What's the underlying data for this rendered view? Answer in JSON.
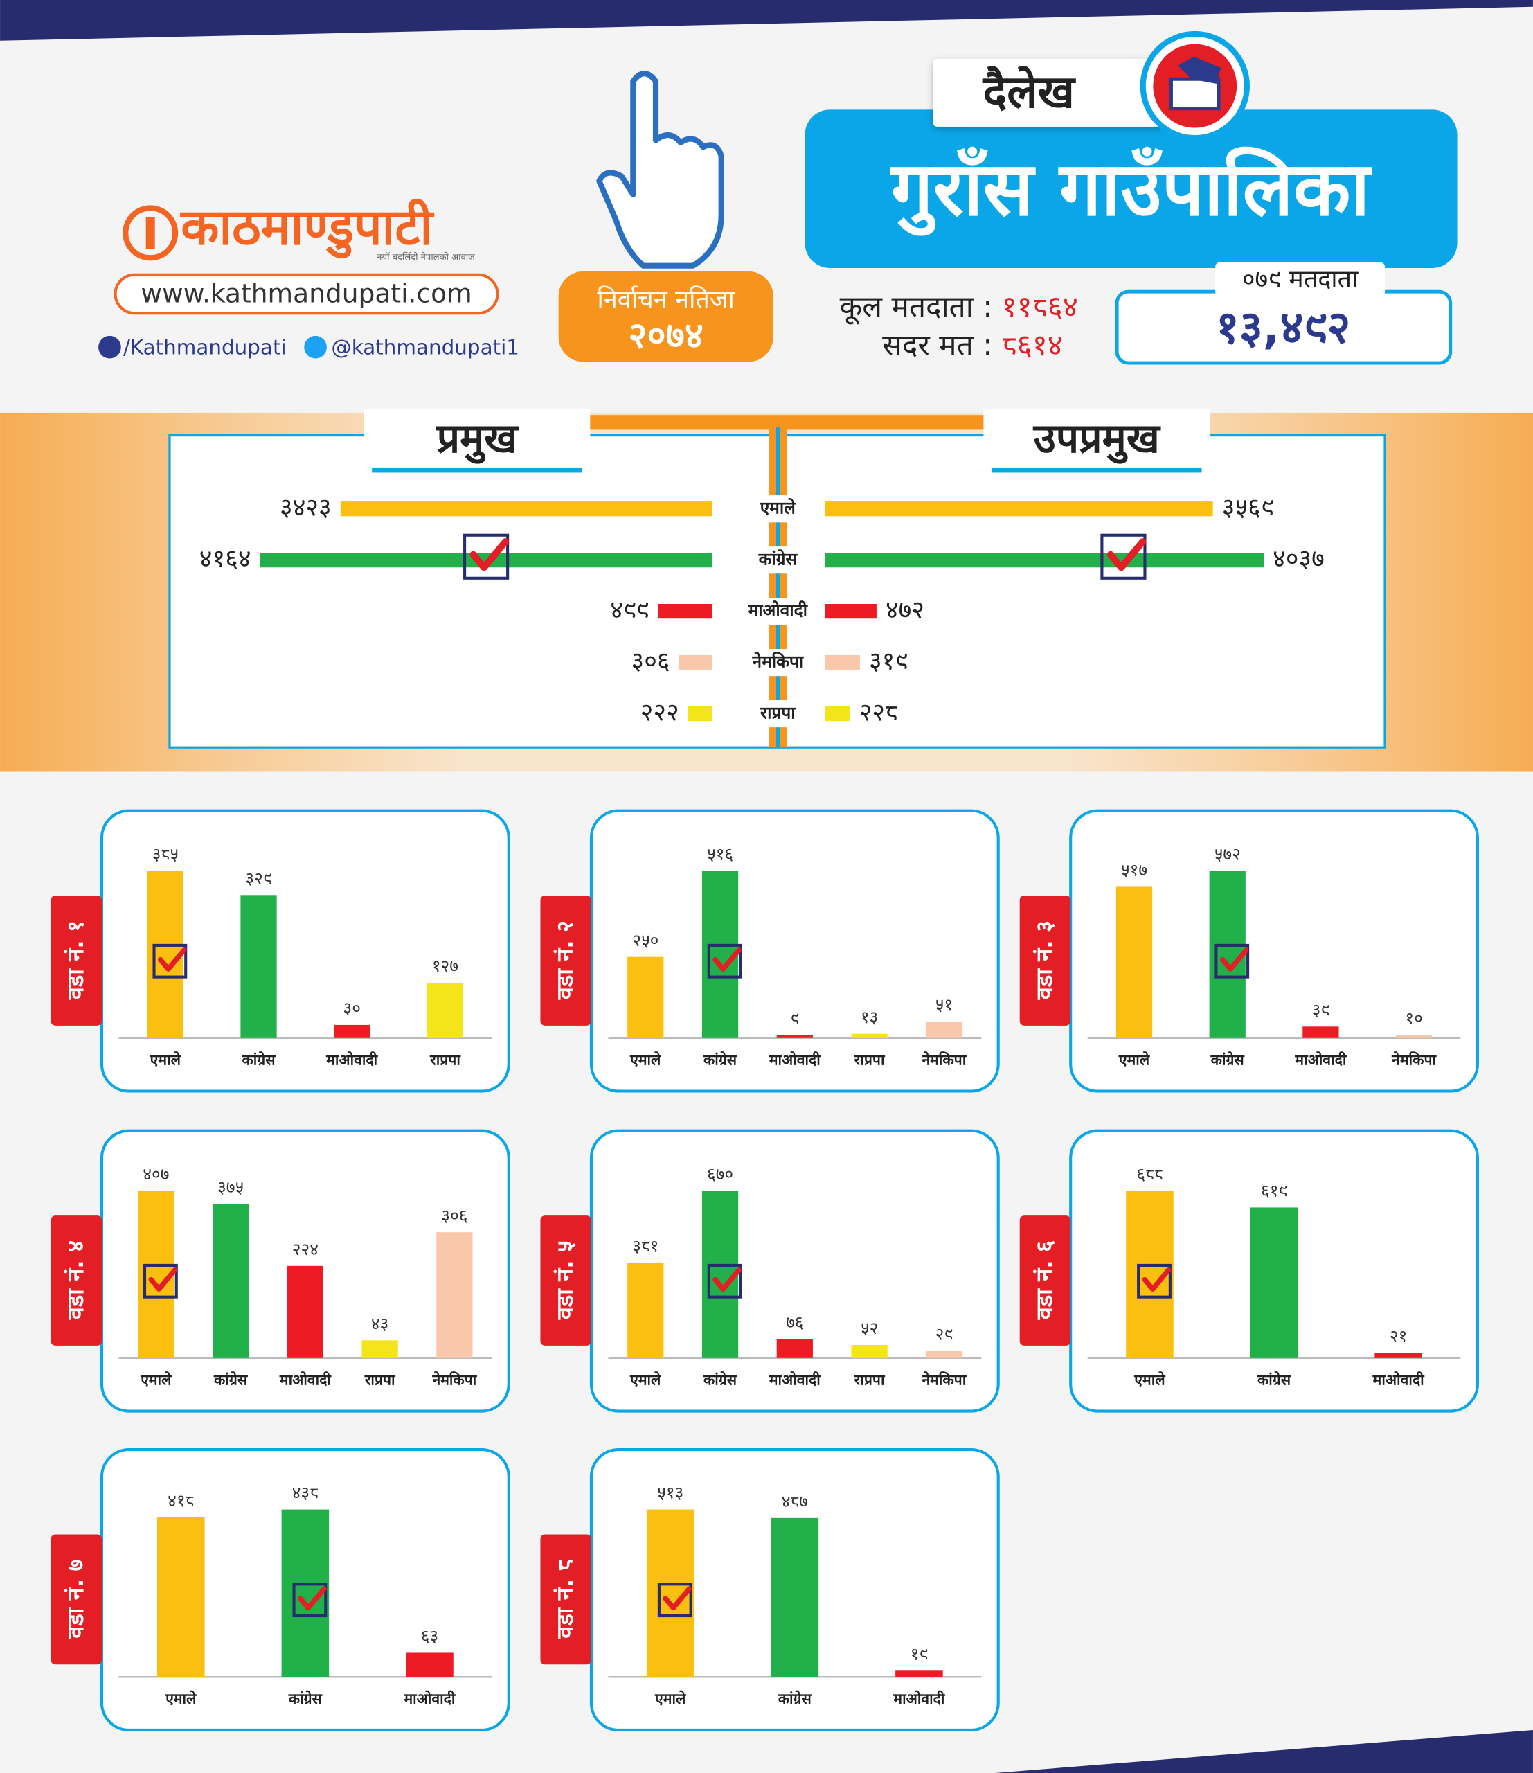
{
  "header": {
    "logo": "काठमाण्डुपाटी",
    "tagline": "नयाँ बदलिँदो नेपालको आवाज",
    "website": "www.kathmandupati.com",
    "facebook": "/Kathmandupati",
    "twitter": "@kathmandupati1",
    "badge_title": "निर्वाचन नतिजा",
    "badge_year": "२०७४",
    "district": "दैलेख",
    "municipality": "गुराँस गाउँपालिका",
    "total_voters_label": "कूल मतदाता :",
    "total_voters": "११८६४",
    "valid_votes_label": "सदर मत :",
    "valid_votes": "८६१४",
    "voters_079_label": "०७९ मतदाता",
    "voters_079": "१३,४९२"
  },
  "chart_data": [
    {
      "type": "diverging-bar",
      "categories": [
        "एमाले",
        "कांग्रेस",
        "माओवादी",
        "नेमकिपा",
        "राप्रपा"
      ],
      "colors": [
        "#fbbf10",
        "#22b04b",
        "#ed1c24",
        "#f9c8aa",
        "#f4e51a"
      ],
      "series": [
        {
          "name": "प्रमुख",
          "values": [
            3423,
            4164,
            499,
            306,
            222
          ],
          "value_labels": [
            "३४२३",
            "४१६४",
            "४९९",
            "३०६",
            "२२२"
          ]
        },
        {
          "name": "उपप्रमुख",
          "values": [
            3569,
            4037,
            472,
            319,
            228
          ],
          "value_labels": [
            "३५६९",
            "४०३७",
            "४७२",
            "३१९",
            "२२८"
          ]
        }
      ]
    },
    {
      "type": "bar",
      "title": "वडा नं. १",
      "categories": [
        "एमाले",
        "कांग्रेस",
        "माओवादी",
        "राप्रपा"
      ],
      "colors": [
        "#fbbf10",
        "#22b04b",
        "#ed1c24",
        "#f4e51a"
      ],
      "values": [
        385,
        329,
        30,
        127
      ],
      "value_labels": [
        "३८५",
        "३२९",
        "३०",
        "१२७"
      ]
    },
    {
      "type": "bar",
      "title": "वडा नं. २",
      "categories": [
        "एमाले",
        "कांग्रेस",
        "माओवादी",
        "राप्रपा",
        "नेमकिपा"
      ],
      "colors": [
        "#fbbf10",
        "#22b04b",
        "#ed1c24",
        "#f4e51a",
        "#f9c8aa"
      ],
      "values": [
        250,
        516,
        9,
        13,
        51
      ],
      "value_labels": [
        "२५०",
        "५१६",
        "९",
        "१३",
        "५१"
      ]
    },
    {
      "type": "bar",
      "title": "वडा नं. ३",
      "categories": [
        "एमाले",
        "कांग्रेस",
        "माओवादी",
        "नेमकिपा"
      ],
      "colors": [
        "#fbbf10",
        "#22b04b",
        "#ed1c24",
        "#f9c8aa"
      ],
      "values": [
        517,
        572,
        39,
        10
      ],
      "value_labels": [
        "५१७",
        "५७२",
        "३९",
        "१०"
      ]
    },
    {
      "type": "bar",
      "title": "वडा नं. ४",
      "categories": [
        "एमाले",
        "कांग्रेस",
        "माओवादी",
        "राप्रपा",
        "नेमकिपा"
      ],
      "colors": [
        "#fbbf10",
        "#22b04b",
        "#ed1c24",
        "#f4e51a",
        "#f9c8aa"
      ],
      "values": [
        407,
        375,
        224,
        43,
        306
      ],
      "value_labels": [
        "४०७",
        "३७५",
        "२२४",
        "४३",
        "३०६"
      ]
    },
    {
      "type": "bar",
      "title": "वडा नं. ५",
      "categories": [
        "एमाले",
        "कांग्रेस",
        "माओवादी",
        "राप्रपा",
        "नेमकिपा"
      ],
      "colors": [
        "#fbbf10",
        "#22b04b",
        "#ed1c24",
        "#f4e51a",
        "#f9c8aa"
      ],
      "values": [
        381,
        670,
        76,
        52,
        29
      ],
      "value_labels": [
        "३८१",
        "६७०",
        "७६",
        "५२",
        "२९"
      ]
    },
    {
      "type": "bar",
      "title": "वडा नं. ६",
      "categories": [
        "एमाले",
        "कांग्रेस",
        "माओवादी"
      ],
      "colors": [
        "#fbbf10",
        "#22b04b",
        "#ed1c24"
      ],
      "values": [
        688,
        619,
        21
      ],
      "value_labels": [
        "६८८",
        "६१९",
        "२१"
      ]
    },
    {
      "type": "bar",
      "title": "वडा नं. ७",
      "categories": [
        "एमाले",
        "कांग्रेस",
        "माओवादी"
      ],
      "colors": [
        "#fbbf10",
        "#22b04b",
        "#ed1c24"
      ],
      "values": [
        418,
        438,
        63
      ],
      "value_labels": [
        "४१८",
        "४३८",
        "६३"
      ]
    },
    {
      "type": "bar",
      "title": "वडा नं. ८",
      "categories": [
        "एमाले",
        "कांग्रेस",
        "माओवादी"
      ],
      "colors": [
        "#fbbf10",
        "#22b04b",
        "#ed1c24"
      ],
      "values": [
        513,
        487,
        19
      ],
      "value_labels": [
        "५१३",
        "४८७",
        "१९"
      ]
    }
  ]
}
